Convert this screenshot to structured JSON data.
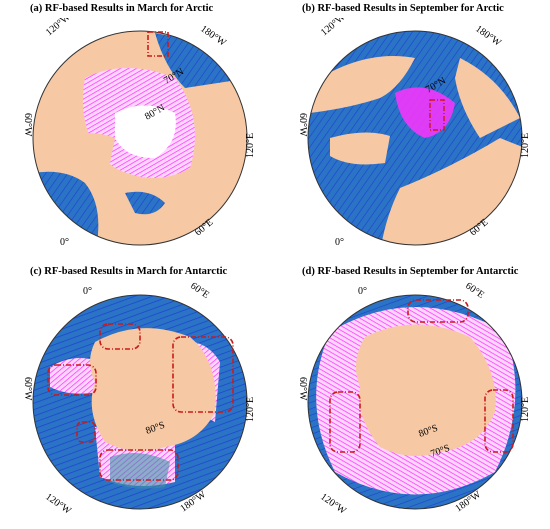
{
  "figure": {
    "panels": [
      {
        "id": "a",
        "title": "(a) RF-based Results in March for Arctic",
        "labels": {
          "top_left": "120°W",
          "top_right": "180°W",
          "left": "60°W",
          "right": "120°E",
          "bottom_left": "0°",
          "bottom_right": "60°E",
          "lat1": "70°N",
          "lat2": "80°N"
        }
      },
      {
        "id": "b",
        "title": "(b) RF-based Results in September for Arctic",
        "labels": {
          "top_left": "120°W",
          "top_right": "180°W",
          "left": "60°W",
          "right": "120°E",
          "bottom_left": "0°",
          "bottom_right": "60°E",
          "lat1": "70°N"
        }
      },
      {
        "id": "c",
        "title": "(c) RF-based Results in March for Antarctic",
        "labels": {
          "top_left": "0°",
          "top_right": "60°E",
          "left": "60°W",
          "right": "120°E",
          "bottom_left": "120°W",
          "bottom_right": "180°W",
          "lat1": "80°S"
        }
      },
      {
        "id": "d",
        "title": "(d) RF-based Results in September for Antarctic",
        "labels": {
          "top_left": "0°",
          "top_right": "60°E",
          "left": "60°W",
          "right": "120°E",
          "bottom_left": "120°W",
          "bottom_right": "180°W",
          "lat1": "80°S",
          "lat2": "70°S"
        }
      }
    ],
    "colors": {
      "ocean": "#2b73c4",
      "ocean_track": "#1b3fd8",
      "land": "#f6c8a4",
      "ice_track": "#ff33ff",
      "ice_open": "#ffffff",
      "box": "#cc1a1a",
      "shelf": "#3d8fa6"
    }
  }
}
